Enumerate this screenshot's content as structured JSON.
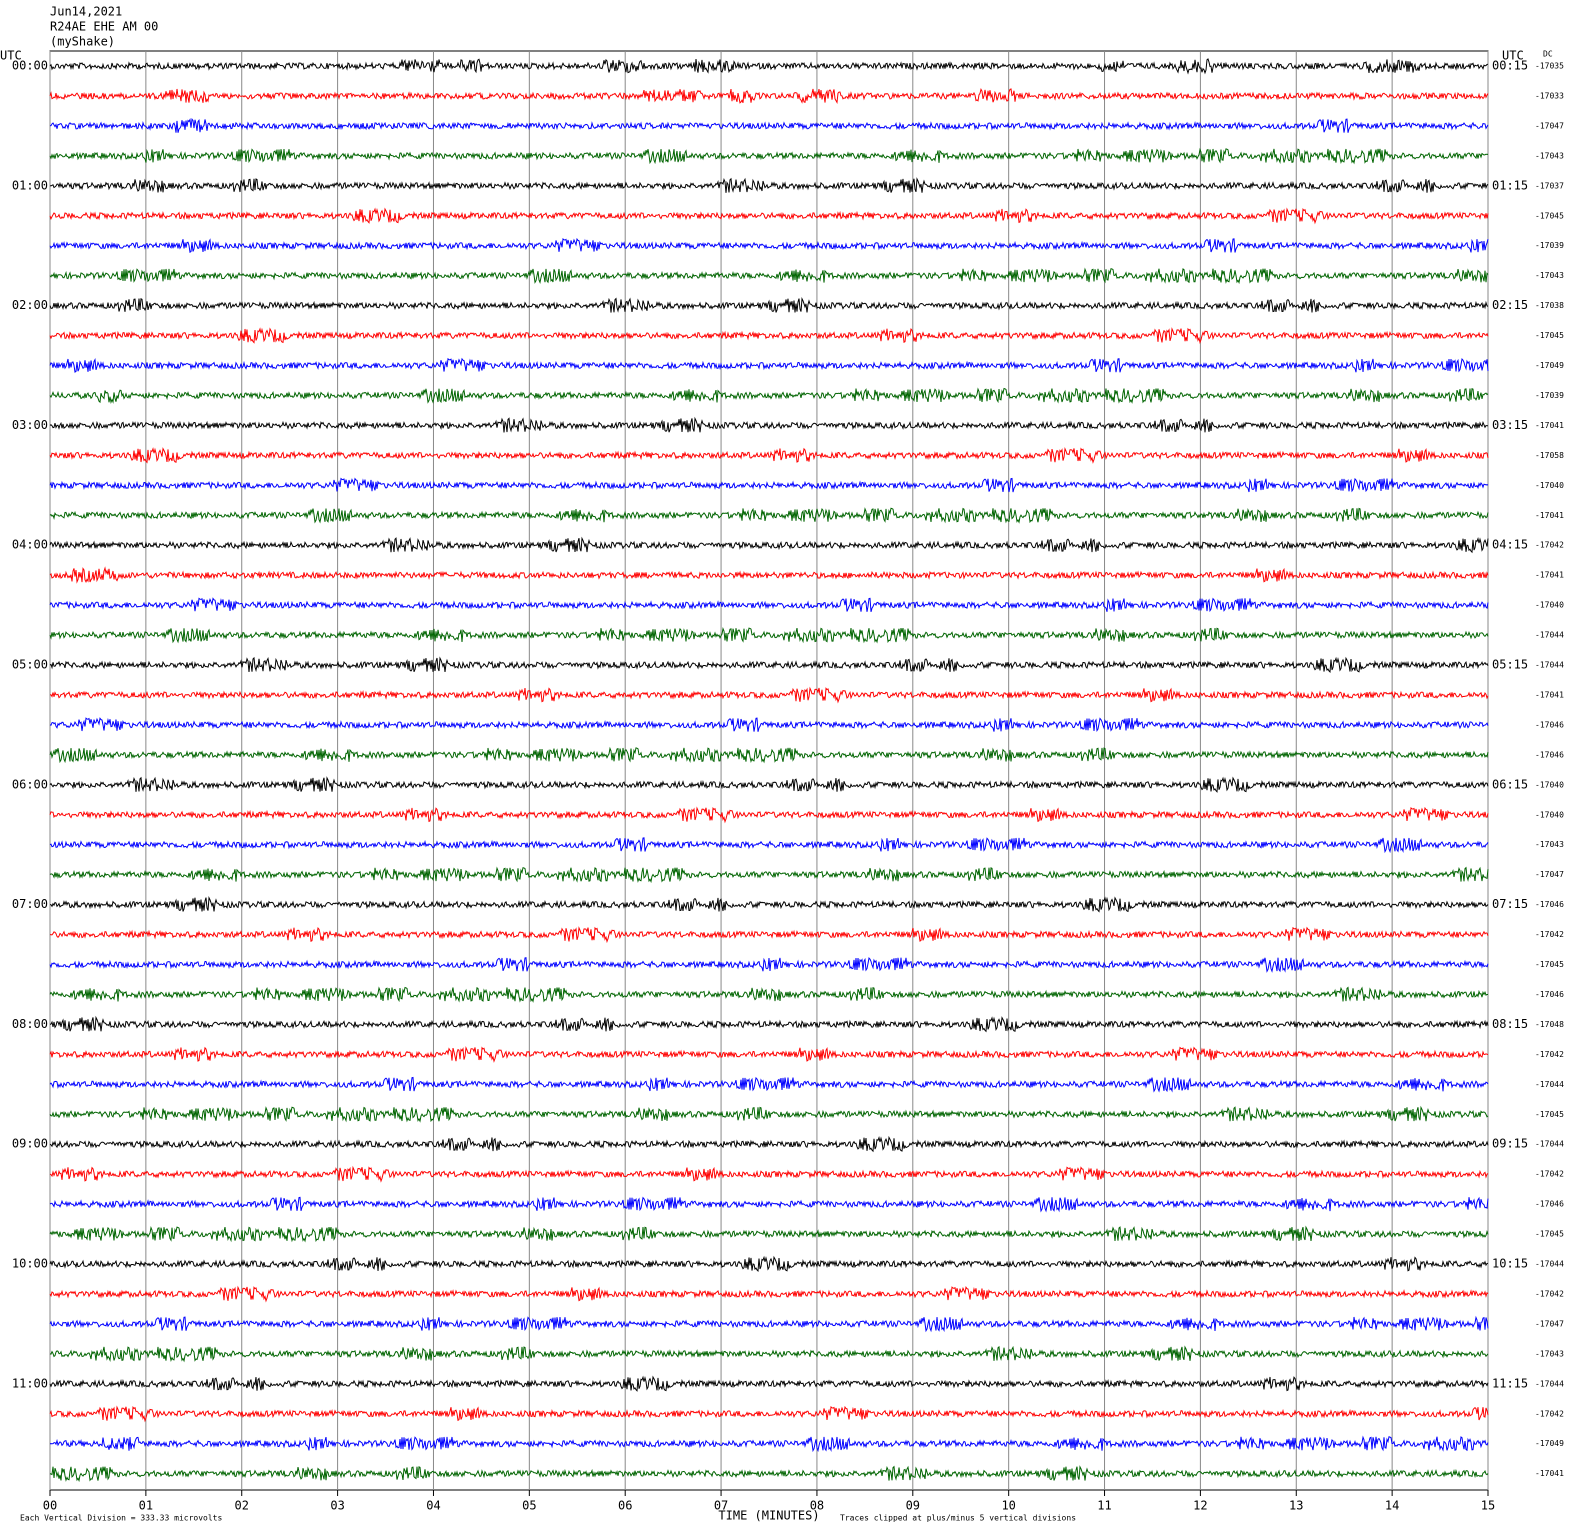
{
  "chart_data": {
    "type": "helicorder",
    "title_lines": [
      "Jun14,2021",
      "R24AE EHE AM 00",
      "(myShake)"
    ],
    "left_header": "UTC",
    "right_header": "UTC",
    "dc_header": "DC",
    "left_labels": [
      "00:00",
      "01:00",
      "02:00",
      "03:00",
      "04:00",
      "05:00",
      "06:00",
      "07:00",
      "08:00",
      "09:00",
      "10:00",
      "11:00"
    ],
    "right_labels": [
      "00:15",
      "01:15",
      "02:15",
      "03:15",
      "04:15",
      "05:15",
      "06:15",
      "07:15",
      "08:15",
      "09:15",
      "10:15",
      "11:15"
    ],
    "colors": [
      "#000000",
      "#ff0000",
      "#0000ff",
      "#006400"
    ],
    "dc_values": [
      -17035,
      -17033,
      -17047,
      -17043,
      -17037,
      -17045,
      -17039,
      -17043,
      -17038,
      -17045,
      -17049,
      -17039,
      -17041,
      -17058,
      -17040,
      -17041,
      -17042,
      -17041,
      -17040,
      -17044,
      -17044,
      -17041,
      -17046,
      -17046,
      -17040,
      -17040,
      -17043,
      -17047,
      -17046,
      -17042,
      -17045,
      -17046,
      -17048,
      -17042,
      -17044,
      -17045,
      -17044,
      -17042,
      -17046,
      -17045,
      -17044,
      -17042,
      -17047,
      -17043,
      -17044,
      -17042,
      -17049,
      -17041
    ],
    "xlim": [
      0,
      15
    ],
    "xticks": [
      {
        "value": 0,
        "label": "00"
      },
      {
        "value": 1,
        "label": "01"
      },
      {
        "value": 2,
        "label": "02"
      },
      {
        "value": 3,
        "label": "03"
      },
      {
        "value": 4,
        "label": "04"
      },
      {
        "value": 5,
        "label": "05"
      },
      {
        "value": 6,
        "label": "06"
      },
      {
        "value": 7,
        "label": "07"
      },
      {
        "value": 8,
        "label": "08"
      },
      {
        "value": 9,
        "label": "09"
      },
      {
        "value": 10,
        "label": "10"
      },
      {
        "value": 11,
        "label": "11"
      },
      {
        "value": 12,
        "label": "12"
      },
      {
        "value": 13,
        "label": "13"
      },
      {
        "value": 14,
        "label": "14"
      },
      {
        "value": 15,
        "label": "15"
      }
    ],
    "xlabel": "TIME (MINUTES)",
    "scale_note": "Each Vertical Division =  333.33 microvolts",
    "clip_note": "Traces clipped at plus/minus 5 vertical divisions",
    "grid": true
  }
}
